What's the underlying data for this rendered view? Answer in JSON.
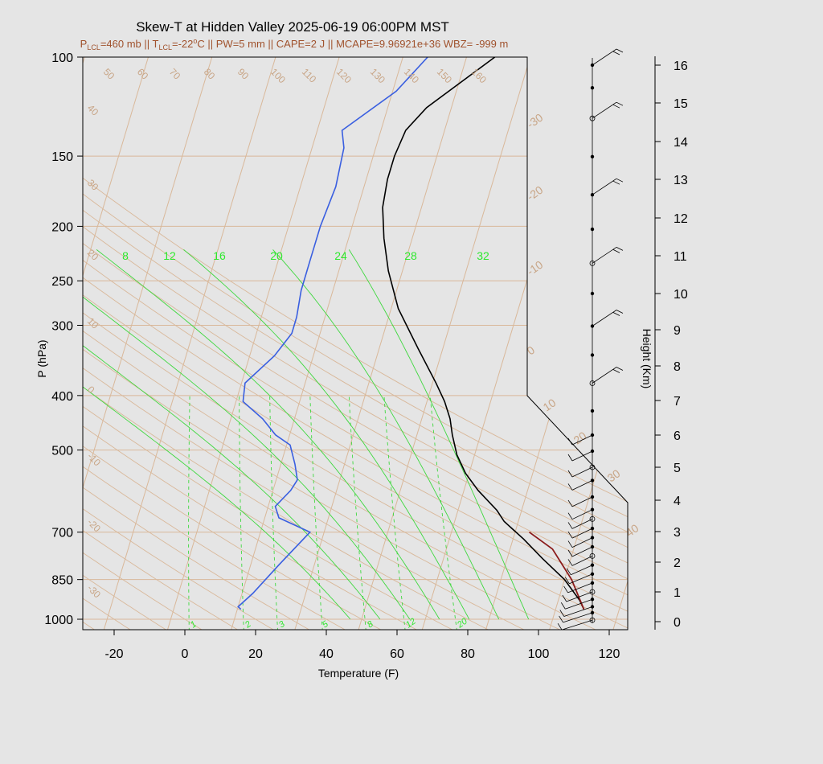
{
  "title": "Skew-T at Hidden Valley 2025-06-19 06:00PM MST",
  "subtitle": {
    "p_prefix": "P",
    "p_sub": "LCL",
    "p_value": "=460 mb || T",
    "t_sub": "LCL",
    "t_value": "=-22",
    "deg": "o",
    "rest": "C || PW=5 mm || CAPE=2 J || MCAPE=9.96921e+36 WBZ= -999 m"
  },
  "colors": {
    "temperature": "#000000",
    "dewpoint": "#3a5fe0",
    "parcel": "#8b1a1a",
    "isotherm": "#d9b89a",
    "isobar": "#d9b89a",
    "dry_adiabat": "#d9b89a",
    "moist_adiabat": "#3ed83e",
    "mixing_ratio": "#3ed83e",
    "subtitle": "#a0522d"
  },
  "chart_data": {
    "type": "line",
    "title": "Skew-T at Hidden Valley 2025-06-19 06:00PM MST",
    "xlabel": "Temperature (F)",
    "ylabel": "P (hPa)",
    "y2label": "Height (Km)",
    "xlim": [
      -28,
      125
    ],
    "ylim": [
      1040,
      100
    ],
    "x_ticks": [
      -20,
      0,
      20,
      40,
      60,
      80,
      100,
      120
    ],
    "p_ticks": [
      100,
      150,
      200,
      250,
      300,
      400,
      500,
      700,
      850,
      1000
    ],
    "height_ticks_km": [
      0,
      1,
      2,
      3,
      4,
      5,
      6,
      7,
      8,
      9,
      10,
      11,
      12,
      13,
      14,
      15,
      16
    ],
    "isotherm_labels_c": [
      -30,
      -20,
      -10,
      0,
      10,
      20,
      30,
      40
    ],
    "dry_adiabat_labels": [
      -30,
      -20,
      -10,
      0,
      10,
      20,
      30,
      40,
      50,
      60,
      70,
      80,
      90,
      100,
      110,
      120,
      130,
      140,
      150,
      160
    ],
    "moist_adiabat_labels": [
      8,
      12,
      16,
      20,
      24,
      28,
      32
    ],
    "mixing_ratio_labels": [
      1,
      2,
      3,
      5,
      8,
      12,
      20
    ],
    "series": [
      {
        "name": "Temperature",
        "points": [
          [
            112,
            960
          ],
          [
            110,
            925
          ],
          [
            104,
            850
          ],
          [
            96,
            780
          ],
          [
            89,
            720
          ],
          [
            82,
            670
          ],
          [
            79,
            640
          ],
          [
            72,
            590
          ],
          [
            67,
            550
          ],
          [
            63,
            510
          ],
          [
            60,
            470
          ],
          [
            58,
            440
          ],
          [
            55,
            410
          ],
          [
            51,
            380
          ],
          [
            43,
            330
          ],
          [
            34,
            280
          ],
          [
            28,
            240
          ],
          [
            24,
            210
          ],
          [
            21,
            185
          ],
          [
            20,
            165
          ],
          [
            20,
            150
          ],
          [
            21,
            135
          ],
          [
            25,
            123
          ],
          [
            40,
            100
          ]
        ]
      },
      {
        "name": "Dewpoint",
        "points": [
          [
            15,
            960
          ],
          [
            14,
            950
          ],
          [
            17,
            900
          ],
          [
            22,
            800
          ],
          [
            28,
            700
          ],
          [
            18,
            660
          ],
          [
            16,
            630
          ],
          [
            19,
            590
          ],
          [
            20,
            565
          ],
          [
            18,
            530
          ],
          [
            15,
            490
          ],
          [
            10,
            470
          ],
          [
            5,
            440
          ],
          [
            -2,
            410
          ],
          [
            -3,
            380
          ],
          [
            3,
            340
          ],
          [
            6,
            310
          ],
          [
            6,
            290
          ],
          [
            5,
            260
          ],
          [
            5,
            230
          ],
          [
            5,
            200
          ],
          [
            6,
            170
          ],
          [
            5,
            145
          ],
          [
            3,
            135
          ],
          [
            15,
            115
          ],
          [
            21,
            100
          ]
        ]
      },
      {
        "name": "Parcel",
        "points": [
          [
            112,
            960
          ],
          [
            106,
            850
          ],
          [
            98,
            750
          ],
          [
            90,
            700
          ]
        ]
      }
    ],
    "wind_profile": {
      "levels_km": [
        0.05,
        0.3,
        0.5,
        0.75,
        1.0,
        1.3,
        1.6,
        1.9,
        2.2,
        2.5,
        2.8,
        3.1,
        3.4,
        3.7,
        4.1,
        4.6,
        5.0,
        5.5,
        6.0,
        6.7,
        7.5,
        8.3,
        9.1,
        10.0,
        10.8,
        11.7,
        12.6,
        13.6,
        14.6,
        15.4,
        16.2
      ]
    }
  }
}
